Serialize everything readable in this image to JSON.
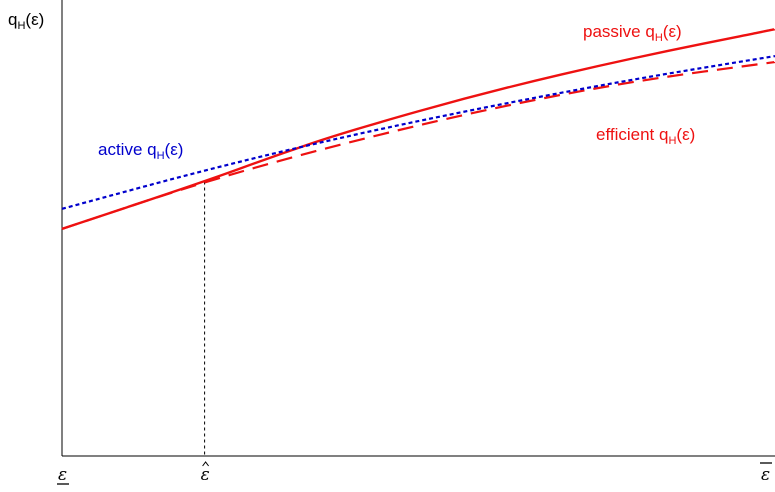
{
  "chart_data": {
    "type": "line",
    "ylabel": {
      "main": "q",
      "sub": "H",
      "tail": "(ε)"
    },
    "xticks": [
      {
        "x": 0,
        "label": "ε",
        "deco": "underline"
      },
      {
        "x": 0.2,
        "label": "ε",
        "deco": "hat"
      },
      {
        "x": 1,
        "label": "ε",
        "deco": "overline"
      }
    ],
    "xlim": [
      0,
      1
    ],
    "ylim": [
      0,
      1
    ],
    "grid": false,
    "reference_lines": [
      {
        "x": 0.2,
        "y_top": 0.602,
        "style": "dashed",
        "color": "#000000"
      }
    ],
    "series": [
      {
        "id": "active",
        "label": {
          "pre": "active q",
          "sub": "H",
          "post": "(ε)"
        },
        "color": "#0000cc",
        "dash": "4,3",
        "width": 2.2,
        "x": [
          0,
          0.2,
          0.4,
          0.6,
          0.8,
          1.0
        ],
        "y": [
          0.542,
          0.627,
          0.702,
          0.767,
          0.826,
          0.877
        ]
      },
      {
        "id": "passive",
        "label": {
          "pre": "passive q",
          "sub": "H",
          "post": "(ε)"
        },
        "color": "#ee1111",
        "dash": "",
        "width": 2.4,
        "x": [
          0,
          0.2,
          0.3,
          0.4,
          0.6,
          0.8,
          1.0
        ],
        "y": [
          0.498,
          0.602,
          0.659,
          0.712,
          0.8,
          0.873,
          0.936
        ]
      },
      {
        "id": "efficient",
        "label": {
          "pre": "efficient q",
          "sub": "H",
          "post": "(ε)"
        },
        "color": "#ee1111",
        "dash": "16,9",
        "width": 2.2,
        "x": [
          0,
          0.2,
          0.4,
          0.6,
          0.8,
          1.0
        ],
        "y": [
          0.498,
          0.602,
          0.688,
          0.762,
          0.822,
          0.864
        ]
      }
    ],
    "colors": {
      "axis": "#000000",
      "active": "#0000cc",
      "passive": "#ee1111",
      "efficient": "#ee1111"
    }
  }
}
